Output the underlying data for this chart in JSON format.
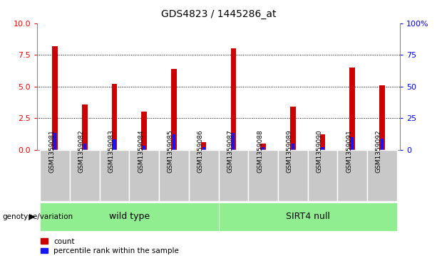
{
  "title": "GDS4823 / 1445286_at",
  "samples": [
    "GSM1359081",
    "GSM1359082",
    "GSM1359083",
    "GSM1359084",
    "GSM1359085",
    "GSM1359086",
    "GSM1359087",
    "GSM1359088",
    "GSM1359089",
    "GSM1359090",
    "GSM1359091",
    "GSM1359092"
  ],
  "count_values": [
    8.2,
    3.6,
    5.2,
    3.0,
    6.4,
    0.6,
    8.0,
    0.5,
    3.4,
    1.2,
    6.5,
    5.1
  ],
  "percentile_values": [
    13,
    5,
    8,
    3,
    12,
    2,
    13,
    2,
    5,
    2,
    10,
    9
  ],
  "groups": [
    {
      "label": "wild type",
      "start": 0,
      "end": 5,
      "color": "#90EE90"
    },
    {
      "label": "SIRT4 null",
      "start": 6,
      "end": 11,
      "color": "#90EE90"
    }
  ],
  "group_label_prefix": "genotype/variation",
  "ylim_left": [
    0,
    10
  ],
  "ylim_right": [
    0,
    100
  ],
  "yticks_left": [
    0,
    2.5,
    5.0,
    7.5,
    10
  ],
  "yticks_right": [
    0,
    25,
    50,
    75,
    100
  ],
  "bar_color_red": "#CC0000",
  "bar_color_blue": "#1414FF",
  "bg_xticklabels": "#C8C8C8",
  "legend_count": "count",
  "legend_pct": "percentile rank within the sample",
  "bar_width": 0.18
}
